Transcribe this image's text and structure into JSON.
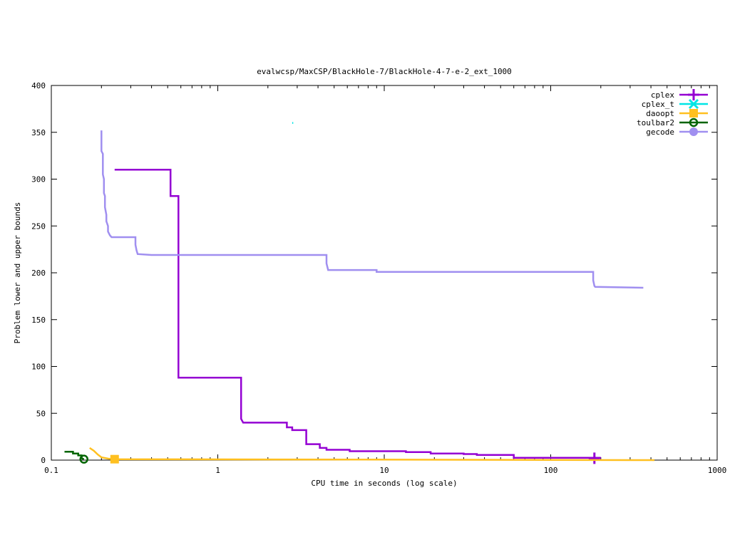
{
  "chart_data": {
    "type": "line",
    "title": "evalwcsp/MaxCSP/BlackHole-7/BlackHole-4-7-e-2_ext_1000",
    "xlabel": "CPU time in seconds (log scale)",
    "ylabel": "Problem lower and upper bounds",
    "xscale": "log",
    "xlim": [
      0.1,
      1000
    ],
    "ylim": [
      0,
      400
    ],
    "x_ticks": [
      0.1,
      1,
      10,
      100,
      1000
    ],
    "x_tick_labels": [
      "0.1",
      "1",
      "10",
      "100",
      "1000"
    ],
    "y_ticks": [
      0,
      50,
      100,
      150,
      200,
      250,
      300,
      350,
      400
    ],
    "y_tick_labels": [
      "0",
      "50",
      "100",
      "150",
      "200",
      "250",
      "300",
      "350",
      "400"
    ],
    "grid": false,
    "legend_position": "top-right",
    "series": [
      {
        "name": "cplex",
        "color": "#9400d3",
        "marker": "plus",
        "marker_at": [
          183,
          2
        ],
        "points": [
          [
            0.24,
            310
          ],
          [
            0.52,
            310
          ],
          [
            0.52,
            282
          ],
          [
            0.58,
            282
          ],
          [
            0.58,
            88
          ],
          [
            1.38,
            88
          ],
          [
            1.38,
            44
          ],
          [
            1.42,
            40
          ],
          [
            2.6,
            40
          ],
          [
            2.6,
            35
          ],
          [
            2.8,
            35
          ],
          [
            2.8,
            32
          ],
          [
            3.4,
            32
          ],
          [
            3.4,
            17
          ],
          [
            4.1,
            17
          ],
          [
            4.1,
            13
          ],
          [
            4.5,
            13
          ],
          [
            4.5,
            11
          ],
          [
            6.2,
            11
          ],
          [
            6.2,
            9.5
          ],
          [
            13.5,
            9.5
          ],
          [
            13.5,
            8.5
          ],
          [
            19,
            8.5
          ],
          [
            19,
            7
          ],
          [
            30,
            7
          ],
          [
            30,
            6.5
          ],
          [
            36,
            6.5
          ],
          [
            36,
            5.5
          ],
          [
            60,
            5.5
          ],
          [
            60,
            2.5
          ],
          [
            200,
            2.5
          ]
        ]
      },
      {
        "name": "cplex_t",
        "color": "#00e5e5",
        "marker": "cross",
        "points": [
          [
            2.8,
            360
          ],
          [
            2.84,
            360
          ]
        ]
      },
      {
        "name": "daoopt",
        "color": "#ffc020",
        "marker": "square",
        "marker_at": [
          0.24,
          1
        ],
        "points": [
          [
            0.17,
            13
          ],
          [
            0.18,
            10
          ],
          [
            0.19,
            6
          ],
          [
            0.2,
            3
          ],
          [
            0.22,
            1.5
          ],
          [
            0.24,
            1
          ],
          [
            420,
            0
          ]
        ]
      },
      {
        "name": "toulbar2",
        "color": "#006400",
        "marker": "circle-open",
        "marker_at": [
          0.157,
          1
        ],
        "points": [
          [
            0.12,
            9
          ],
          [
            0.135,
            9
          ],
          [
            0.135,
            7
          ],
          [
            0.145,
            7
          ],
          [
            0.145,
            5
          ],
          [
            0.152,
            5
          ],
          [
            0.152,
            2
          ],
          [
            0.157,
            1
          ]
        ]
      },
      {
        "name": "gecode",
        "color": "#a08ff0",
        "marker": "circle-filled",
        "points": [
          [
            0.2,
            352
          ],
          [
            0.2,
            330
          ],
          [
            0.204,
            327
          ],
          [
            0.204,
            305
          ],
          [
            0.207,
            300
          ],
          [
            0.207,
            285
          ],
          [
            0.21,
            282
          ],
          [
            0.21,
            270
          ],
          [
            0.214,
            262
          ],
          [
            0.214,
            255
          ],
          [
            0.219,
            250
          ],
          [
            0.219,
            244
          ],
          [
            0.225,
            240
          ],
          [
            0.23,
            238
          ],
          [
            0.32,
            238
          ],
          [
            0.32,
            230
          ],
          [
            0.325,
            224
          ],
          [
            0.33,
            220
          ],
          [
            0.4,
            219
          ],
          [
            4.5,
            219
          ],
          [
            4.5,
            210
          ],
          [
            4.6,
            203
          ],
          [
            9,
            203
          ],
          [
            9,
            201
          ],
          [
            180,
            201
          ],
          [
            180,
            192
          ],
          [
            183,
            186
          ],
          [
            185,
            185
          ],
          [
            360,
            184
          ]
        ]
      }
    ]
  }
}
